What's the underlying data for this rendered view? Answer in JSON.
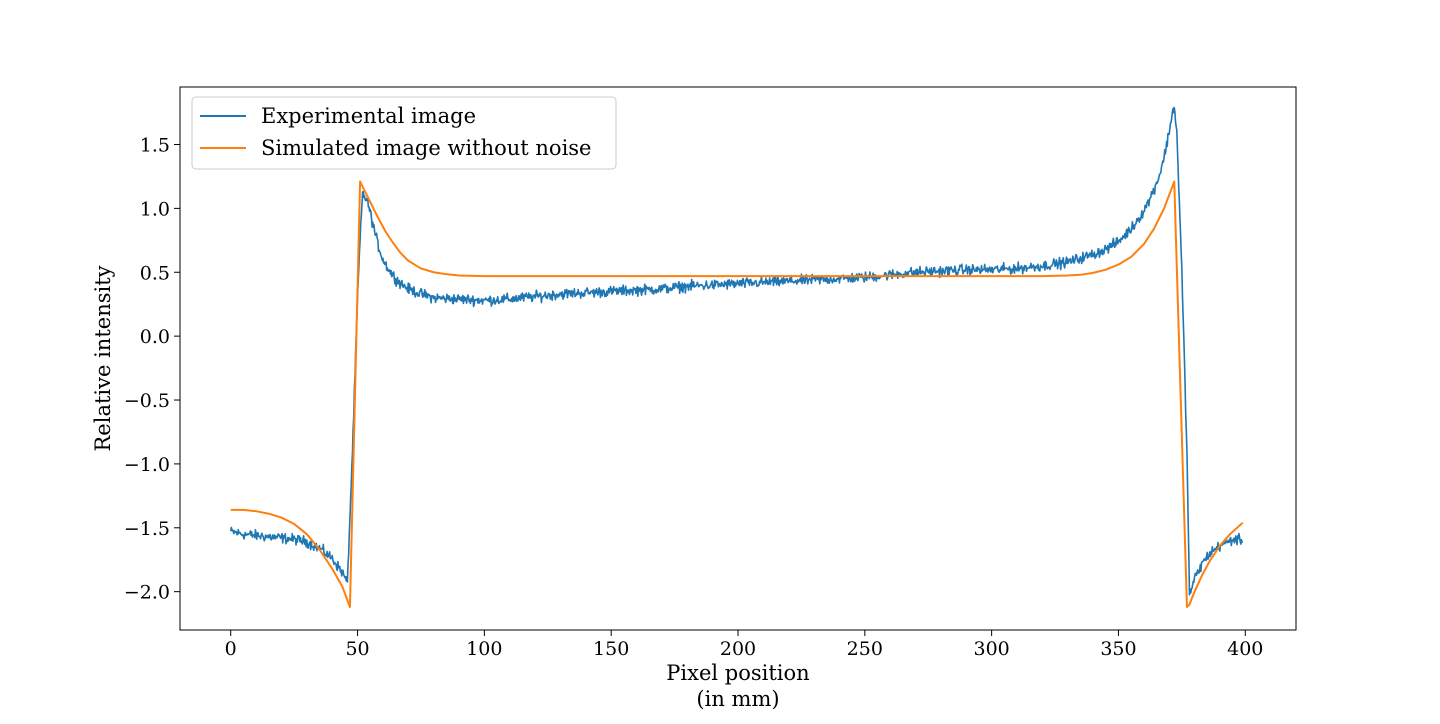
{
  "chart_data": {
    "type": "line",
    "xlabel": [
      "Pixel position",
      "(in mm)"
    ],
    "ylabel": "Relative intensity",
    "xlim": [
      -20,
      420
    ],
    "ylim": [
      -2.3,
      1.95
    ],
    "xticks": [
      0,
      50,
      100,
      150,
      200,
      250,
      300,
      350,
      400
    ],
    "xtick_labels": [
      "0",
      "50",
      "100",
      "150",
      "200",
      "250",
      "300",
      "350",
      "400"
    ],
    "yticks": [
      -2.0,
      -1.5,
      -1.0,
      -0.5,
      0.0,
      0.5,
      1.0,
      1.5
    ],
    "ytick_labels": [
      "−2.0",
      "−1.5",
      "−1.0",
      "−0.5",
      "0.0",
      "0.5",
      "1.0",
      "1.5"
    ],
    "grid": false,
    "legend_position": "top-left",
    "series": [
      {
        "name": "Experimental image",
        "color": "#1f77b4",
        "x": [
          0,
          5,
          10,
          15,
          20,
          25,
          30,
          35,
          40,
          44,
          46,
          48,
          50,
          51,
          52,
          54,
          56,
          58,
          60,
          63,
          66,
          70,
          75,
          80,
          90,
          100,
          110,
          120,
          130,
          140,
          150,
          160,
          170,
          180,
          190,
          200,
          210,
          220,
          230,
          240,
          250,
          260,
          270,
          280,
          290,
          300,
          310,
          320,
          330,
          340,
          345,
          350,
          355,
          360,
          363,
          366,
          368,
          370,
          371,
          372,
          373,
          375,
          377,
          378,
          380,
          383,
          386,
          390,
          393,
          396,
          399
        ],
        "y": [
          -1.53,
          -1.55,
          -1.56,
          -1.57,
          -1.58,
          -1.59,
          -1.61,
          -1.66,
          -1.74,
          -1.85,
          -1.93,
          -0.9,
          0.3,
          0.75,
          1.12,
          1.05,
          0.88,
          0.72,
          0.6,
          0.5,
          0.43,
          0.37,
          0.33,
          0.3,
          0.29,
          0.28,
          0.29,
          0.31,
          0.33,
          0.34,
          0.35,
          0.36,
          0.37,
          0.39,
          0.4,
          0.41,
          0.42,
          0.43,
          0.44,
          0.45,
          0.46,
          0.48,
          0.5,
          0.51,
          0.52,
          0.52,
          0.53,
          0.55,
          0.58,
          0.64,
          0.68,
          0.74,
          0.84,
          0.98,
          1.1,
          1.25,
          1.4,
          1.6,
          1.72,
          1.8,
          1.6,
          0.5,
          -0.9,
          -2.02,
          -1.9,
          -1.78,
          -1.7,
          -1.64,
          -1.61,
          -1.59,
          -1.6
        ],
        "noise_amplitude": 0.025
      },
      {
        "name": "Simulated image without noise",
        "color": "#ff7f0e",
        "x": [
          0,
          5,
          10,
          15,
          20,
          25,
          30,
          35,
          40,
          44,
          47,
          51,
          53,
          55,
          58,
          61,
          64,
          67,
          70,
          75,
          80,
          85,
          90,
          100,
          150,
          200,
          250,
          300,
          320,
          330,
          335,
          340,
          345,
          350,
          355,
          360,
          364,
          368,
          372,
          377,
          378,
          380,
          383,
          386,
          390,
          394,
          399
        ],
        "y": [
          -1.36,
          -1.36,
          -1.37,
          -1.39,
          -1.42,
          -1.47,
          -1.55,
          -1.67,
          -1.82,
          -1.96,
          -2.12,
          1.21,
          1.13,
          1.05,
          0.93,
          0.82,
          0.73,
          0.65,
          0.59,
          0.53,
          0.5,
          0.485,
          0.475,
          0.47,
          0.47,
          0.47,
          0.47,
          0.47,
          0.47,
          0.475,
          0.48,
          0.495,
          0.52,
          0.56,
          0.62,
          0.72,
          0.84,
          1.0,
          1.21,
          -2.12,
          -2.1,
          -2.0,
          -1.87,
          -1.76,
          -1.64,
          -1.55,
          -1.46
        ]
      }
    ]
  }
}
